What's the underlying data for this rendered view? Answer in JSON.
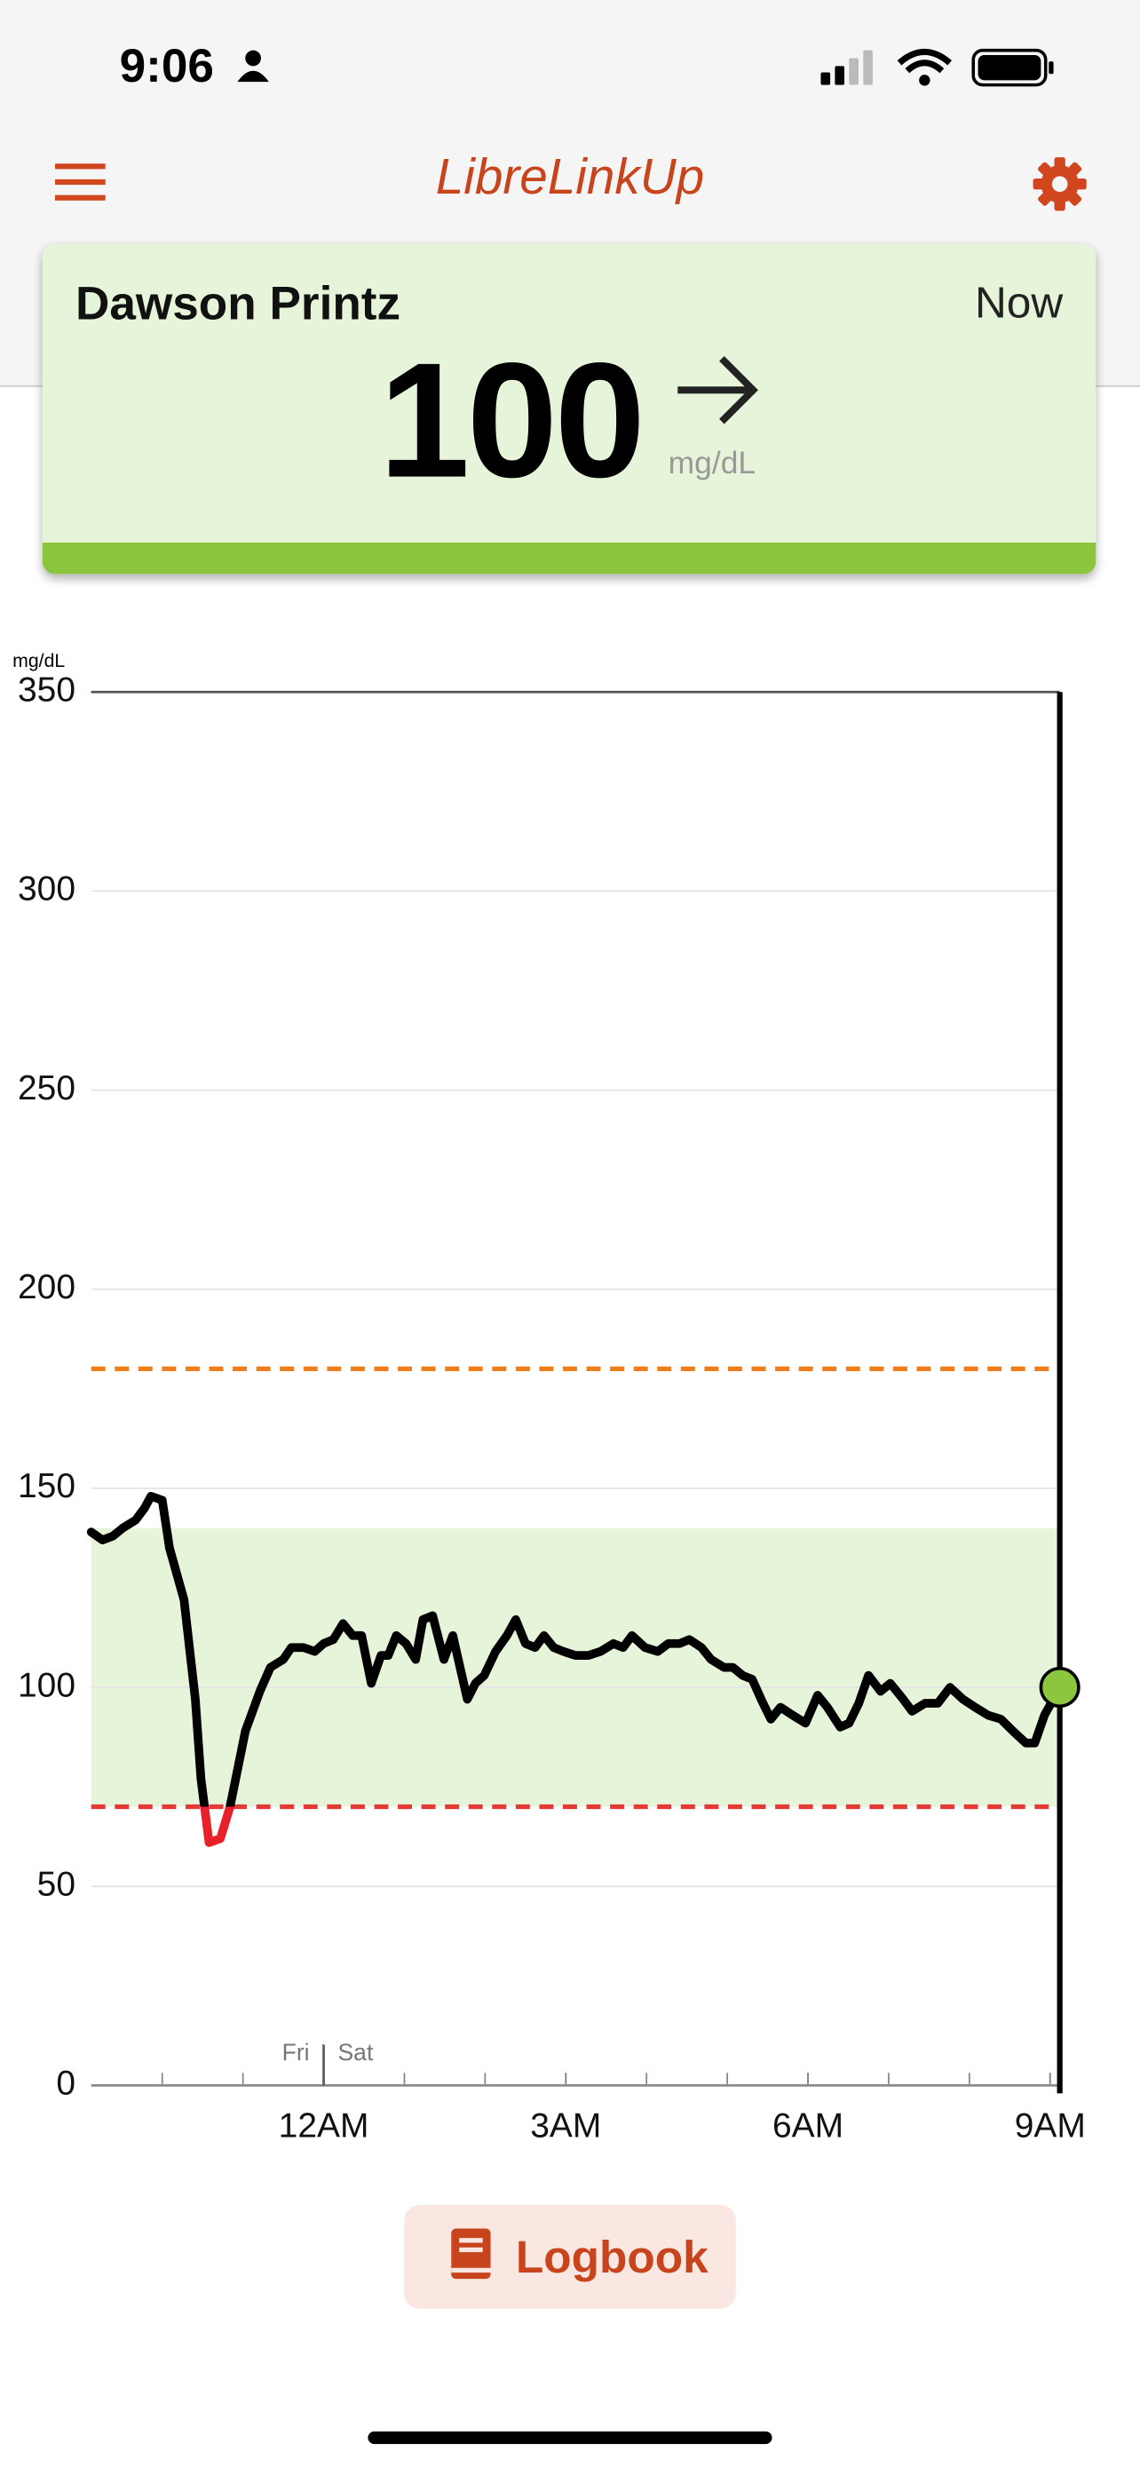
{
  "status_bar": {
    "time": "9:06"
  },
  "header": {
    "title": "LibreLinkUp"
  },
  "reading": {
    "name": "Dawson Printz",
    "time": "Now",
    "value": 100,
    "unit": "mg/dL"
  },
  "chart_data": {
    "type": "line",
    "y_unit": "mg/dL",
    "x": [
      21.12,
      21.26,
      21.39,
      21.51,
      21.67,
      21.78,
      21.86,
      22.0,
      22.09,
      22.27,
      22.41,
      22.48,
      22.58,
      22.72,
      22.84,
      22.93,
      23.03,
      23.21,
      23.34,
      23.5,
      23.6,
      23.75,
      23.89,
      24.0,
      24.12,
      24.24,
      24.36,
      24.47,
      24.59,
      24.71,
      24.8,
      24.9,
      25.02,
      25.14,
      25.23,
      25.35,
      25.49,
      25.6,
      25.78,
      25.88,
      25.99,
      26.13,
      26.27,
      26.38,
      26.5,
      26.62,
      26.73,
      26.85,
      26.97,
      27.12,
      27.28,
      27.43,
      27.59,
      27.71,
      27.82,
      27.98,
      28.14,
      28.27,
      28.41,
      28.53,
      28.68,
      28.8,
      28.96,
      29.07,
      29.19,
      29.31,
      29.42,
      29.54,
      29.66,
      29.81,
      29.97,
      30.12,
      30.24,
      30.4,
      30.51,
      30.63,
      30.75,
      30.9,
      31.02,
      31.18,
      31.29,
      31.45,
      31.61,
      31.76,
      31.92,
      32.07,
      32.23,
      32.39,
      32.54,
      32.7,
      32.81,
      32.93,
      33.12
    ],
    "values": [
      139,
      137,
      138,
      140,
      142,
      145,
      148,
      147,
      135,
      122,
      97,
      77,
      61,
      62,
      70,
      79,
      89,
      99,
      105,
      107,
      110,
      110,
      109,
      111,
      112,
      116,
      113,
      113,
      101,
      108,
      108,
      113,
      111,
      107,
      117,
      118,
      107,
      113,
      97,
      101,
      103,
      109,
      113,
      117,
      111,
      110,
      113,
      110,
      109,
      108,
      108,
      109,
      111,
      110,
      113,
      110,
      109,
      111,
      111,
      112,
      110,
      107,
      105,
      105,
      103,
      102,
      97,
      92,
      95,
      93,
      91,
      98,
      95,
      90,
      91,
      96,
      103,
      99,
      101,
      97,
      94,
      96,
      96,
      100,
      97,
      95,
      93,
      92,
      89,
      86,
      86,
      93,
      100
    ],
    "color": "#000000",
    "low_color": "#e8202a",
    "end_color": "#8cc63f",
    "ylim": [
      0,
      350
    ],
    "yticks": [
      0,
      50,
      100,
      150,
      200,
      250,
      300,
      350
    ],
    "xlim": [
      21.12,
      33.12
    ],
    "xticks": [
      {
        "value": 24,
        "label": "12AM"
      },
      {
        "value": 27,
        "label": "3AM"
      },
      {
        "value": 30,
        "label": "6AM"
      },
      {
        "value": 33,
        "label": "9AM"
      }
    ],
    "day_labels": [
      "Fri",
      "Sat"
    ],
    "day_change": 24,
    "target_range": [
      70,
      140
    ],
    "target_color": "#e6f4d9",
    "low_line": 70,
    "low_line_color": "#e53935",
    "high_line": 180,
    "high_line_color": "#ef7d1a",
    "grid": true
  },
  "button": {
    "label": "Logbook"
  }
}
